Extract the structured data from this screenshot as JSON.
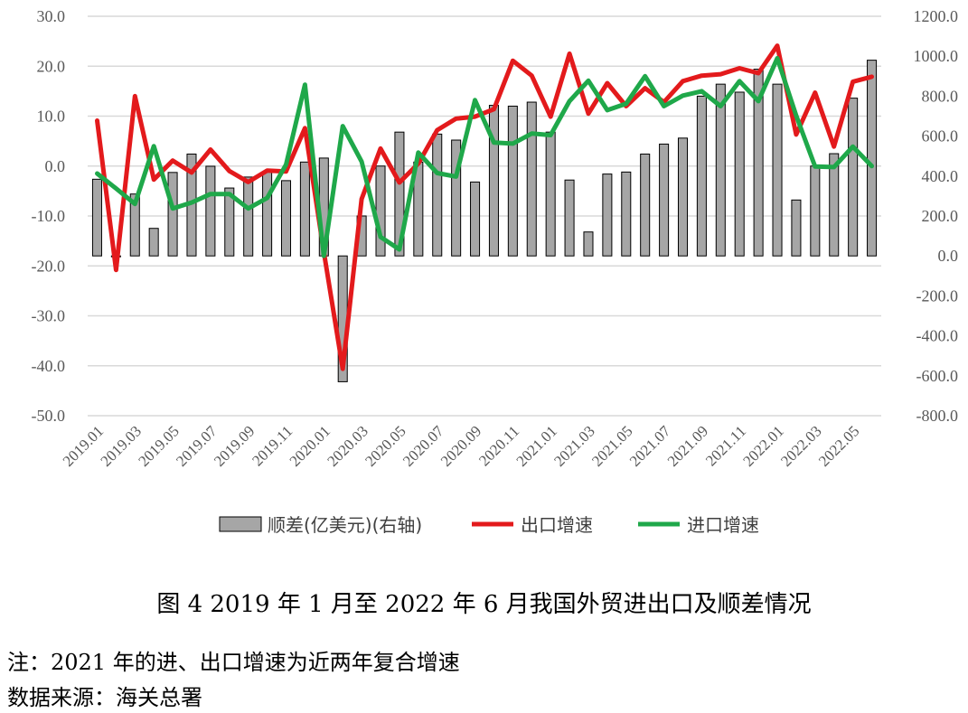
{
  "chart_data": {
    "type": "bar+line",
    "x": [
      "2019.01",
      "2019.02",
      "2019.03",
      "2019.04",
      "2019.05",
      "2019.06",
      "2019.07",
      "2019.08",
      "2019.09",
      "2019.10",
      "2019.11",
      "2019.12",
      "2020.01",
      "2020.02",
      "2020.03",
      "2020.04",
      "2020.05",
      "2020.06",
      "2020.07",
      "2020.08",
      "2020.09",
      "2020.10",
      "2020.11",
      "2020.12",
      "2021.01",
      "2021.02",
      "2021.03",
      "2021.04",
      "2021.05",
      "2021.06",
      "2021.07",
      "2021.08",
      "2021.09",
      "2021.10",
      "2021.11",
      "2021.12",
      "2022.01",
      "2022.02",
      "2022.03",
      "2022.04",
      "2022.05",
      "2022.06"
    ],
    "x_tick_labels": [
      "2019.01",
      "2019.03",
      "2019.05",
      "2019.07",
      "2019.09",
      "2019.11",
      "2020.01",
      "2020.03",
      "2020.05",
      "2020.07",
      "2020.09",
      "2020.11",
      "2021.01",
      "2021.03",
      "2021.05",
      "2021.07",
      "2021.09",
      "2021.11",
      "2022.01",
      "2022.03",
      "2022.05"
    ],
    "left_axis": {
      "ylim": [
        -50,
        30
      ],
      "ticks": [
        "30.0",
        "20.0",
        "10.0",
        "0.0",
        "-10.0",
        "-20.0",
        "-30.0",
        "-40.0",
        "-50.0"
      ]
    },
    "right_axis": {
      "ylim": [
        -800,
        1200
      ],
      "ticks": [
        "1200.0",
        "1000.0",
        "800.0",
        "600.0",
        "400.0",
        "200.0",
        "0.0",
        "-200.0",
        "-400.0",
        "-600.0",
        "-800.0"
      ]
    },
    "grid": true,
    "legend_position": "bottom",
    "series": [
      {
        "name": "顺差(亿美元)(右轴)",
        "type": "bar",
        "axis": "right",
        "color": "#a6a6a6",
        "values": [
          384,
          0,
          310,
          138,
          418,
          510,
          449,
          340,
          395,
          420,
          377,
          470,
          490,
          -630,
          200,
          450,
          620,
          470,
          610,
          580,
          370,
          754,
          750,
          770,
          620,
          380,
          120,
          410,
          420,
          510,
          560,
          590,
          800,
          860,
          820,
          935,
          860,
          280,
          450,
          512,
          790,
          980
        ]
      },
      {
        "name": "出口增速",
        "type": "line",
        "axis": "left",
        "color": "#e31a1c",
        "values": [
          9.1,
          -20.8,
          14.0,
          -2.7,
          1.1,
          -1.3,
          3.3,
          -1.0,
          -3.2,
          -0.9,
          -1.1,
          7.6,
          -17.2,
          -40.6,
          -6.6,
          3.5,
          -3.3,
          0.5,
          7.2,
          9.5,
          9.9,
          11.4,
          21.1,
          18.1,
          9.9,
          22.5,
          10.5,
          16.6,
          12.0,
          15.6,
          12.8,
          17.0,
          18.1,
          18.4,
          19.6,
          18.6,
          24.1,
          6.3,
          14.7,
          3.9,
          16.9,
          17.9
        ]
      },
      {
        "name": "进口增速",
        "type": "line",
        "axis": "left",
        "color": "#1fa84a",
        "values": [
          -1.5,
          -4.5,
          -7.6,
          4.0,
          -8.5,
          -7.3,
          -5.6,
          -5.6,
          -8.5,
          -6.4,
          0.3,
          16.3,
          -18.0,
          8.0,
          0.9,
          -14.2,
          -16.7,
          2.7,
          -1.4,
          -2.1,
          13.2,
          4.7,
          4.5,
          6.5,
          6.2,
          13.0,
          17.1,
          11.2,
          12.5,
          18.0,
          12.0,
          14.1,
          15.0,
          12.0,
          17.0,
          13.0,
          21.6,
          10.1,
          -0.1,
          -0.2,
          3.9,
          0.0
        ]
      }
    ],
    "caption": "图 4  2019 年 1 月至 2022 年 6 月我国外贸进出口及顺差情况"
  },
  "notes": {
    "note1": "注：2021 年的进、出口增速为近两年复合增速",
    "note2": "数据来源：海关总署"
  }
}
